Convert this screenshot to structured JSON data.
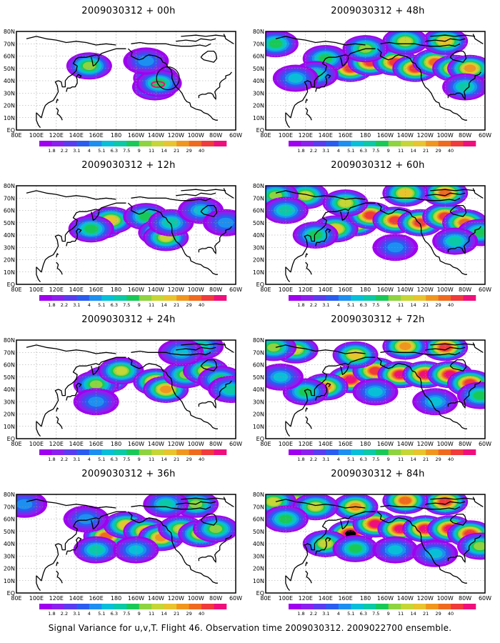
{
  "palette": {
    "colorbar": [
      "#9f00ef",
      "#8b20ee",
      "#5a3cf0",
      "#2b5cf0",
      "#1d8ff0",
      "#08bfd8",
      "#0bc9a6",
      "#19c957",
      "#8ed340",
      "#c5d636",
      "#e8c42e",
      "#f0961f",
      "#ef6a1f",
      "#f03a3c",
      "#ef0f7c"
    ],
    "land_outline": "#000000",
    "grid": "#9a9a9a"
  },
  "colorbar": {
    "labels": [
      "1.8",
      "2.2",
      "3.1",
      "4",
      "5.1",
      "6.3",
      "7.5",
      "9",
      "11",
      "14",
      "21",
      "29",
      "40"
    ]
  },
  "axes": {
    "lon_labels": [
      "80E",
      "100E",
      "120E",
      "140E",
      "160E",
      "180",
      "160W",
      "140W",
      "120W",
      "100W",
      "80W",
      "60W"
    ],
    "lat_labels": [
      "EQ",
      "10N",
      "20N",
      "30N",
      "40N",
      "50N",
      "60N",
      "70N",
      "80N"
    ]
  },
  "panels": [
    {
      "id": "00h",
      "title": "2009030312 + 00h",
      "blobs": [
        [
          153,
          52,
          9
        ],
        [
          -140,
          42,
          10
        ],
        [
          -141,
          35,
          8
        ],
        [
          -137,
          38,
          8
        ],
        [
          -150,
          56,
          5
        ]
      ],
      "peak": [
        -138,
        37,
        2.4
      ],
      "circle": [
        -128,
        42
      ]
    },
    {
      "id": "12h",
      "title": "2009030312 + 12h",
      "blobs": [
        [
          165,
          48,
          12
        ],
        [
          175,
          52,
          11
        ],
        [
          155,
          45,
          8
        ],
        [
          -150,
          55,
          8
        ],
        [
          -135,
          42,
          11
        ],
        [
          -130,
          38,
          10
        ],
        [
          -125,
          50,
          7
        ],
        [
          -95,
          60,
          6
        ],
        [
          -70,
          50,
          5
        ]
      ]
    },
    {
      "id": "24h",
      "title": "2009030312 + 24h",
      "blobs": [
        [
          170,
          48,
          14
        ],
        [
          160,
          44,
          9
        ],
        [
          -175,
          55,
          10
        ],
        [
          -140,
          46,
          13
        ],
        [
          -130,
          40,
          12
        ],
        [
          -110,
          52,
          9
        ],
        [
          -90,
          55,
          10
        ],
        [
          -75,
          48,
          8
        ],
        [
          -95,
          75,
          7
        ],
        [
          -115,
          70,
          6
        ],
        [
          -65,
          40,
          7
        ],
        [
          160,
          30,
          5
        ]
      ]
    },
    {
      "id": "36h",
      "title": "2009030312 + 36h",
      "blobs": [
        [
          170,
          46,
          13
        ],
        [
          -170,
          55,
          11
        ],
        [
          -150,
          50,
          12
        ],
        [
          -135,
          45,
          12
        ],
        [
          -115,
          52,
          10
        ],
        [
          -95,
          48,
          11
        ],
        [
          -80,
          52,
          9
        ],
        [
          -100,
          72,
          9
        ],
        [
          -130,
          72,
          7
        ],
        [
          160,
          35,
          7
        ],
        [
          -160,
          35,
          6
        ],
        [
          150,
          60,
          5
        ],
        [
          88,
          72,
          5
        ]
      ]
    },
    {
      "id": "48h",
      "title": "2009030312 + 48h",
      "blobs": [
        [
          165,
          50,
          14
        ],
        [
          -175,
          55,
          14
        ],
        [
          -150,
          55,
          14
        ],
        [
          -130,
          50,
          14
        ],
        [
          -110,
          55,
          13
        ],
        [
          -90,
          50,
          13
        ],
        [
          -75,
          50,
          12
        ],
        [
          -100,
          72,
          11
        ],
        [
          -140,
          72,
          10
        ],
        [
          140,
          58,
          8
        ],
        [
          130,
          45,
          7
        ],
        [
          110,
          42,
          6
        ],
        [
          90,
          70,
          8
        ],
        [
          180,
          66,
          9
        ],
        [
          -80,
          35,
          7
        ]
      ]
    },
    {
      "id": "60h",
      "title": "2009030312 + 60h",
      "blobs": [
        [
          170,
          50,
          14
        ],
        [
          150,
          45,
          11
        ],
        [
          130,
          40,
          8
        ],
        [
          -175,
          56,
          14
        ],
        [
          -150,
          52,
          14
        ],
        [
          -125,
          50,
          14
        ],
        [
          -100,
          55,
          14
        ],
        [
          -80,
          50,
          13
        ],
        [
          -65,
          42,
          8
        ],
        [
          -100,
          74,
          13
        ],
        [
          -140,
          74,
          11
        ],
        [
          120,
          72,
          10
        ],
        [
          90,
          72,
          9
        ],
        [
          100,
          60,
          7
        ],
        [
          160,
          66,
          10
        ],
        [
          -150,
          30,
          5
        ],
        [
          -90,
          35,
          7
        ]
      ]
    },
    {
      "id": "72h",
      "title": "2009030312 + 72h",
      "blobs": [
        [
          165,
          48,
          15
        ],
        [
          140,
          42,
          12
        ],
        [
          120,
          38,
          8
        ],
        [
          -170,
          55,
          14
        ],
        [
          -145,
          52,
          15
        ],
        [
          -120,
          52,
          15
        ],
        [
          -95,
          52,
          15
        ],
        [
          -75,
          45,
          14
        ],
        [
          -65,
          35,
          8
        ],
        [
          -100,
          74,
          14
        ],
        [
          -140,
          75,
          12
        ],
        [
          110,
          72,
          10
        ],
        [
          88,
          74,
          9
        ],
        [
          170,
          68,
          11
        ],
        [
          -170,
          38,
          6
        ],
        [
          -110,
          30,
          6
        ],
        [
          95,
          50,
          6
        ]
      ]
    },
    {
      "id": "84h",
      "title": "2009030312 + 84h",
      "blobs": [
        [
          165,
          48,
          16
        ],
        [
          140,
          40,
          10
        ],
        [
          170,
          36,
          8
        ],
        [
          -170,
          56,
          15
        ],
        [
          -145,
          52,
          15
        ],
        [
          -120,
          52,
          15
        ],
        [
          -95,
          52,
          15
        ],
        [
          -75,
          48,
          14
        ],
        [
          -65,
          38,
          9
        ],
        [
          -100,
          74,
          14
        ],
        [
          -140,
          75,
          13
        ],
        [
          110,
          74,
          11
        ],
        [
          88,
          74,
          10
        ],
        [
          170,
          70,
          12
        ],
        [
          130,
          70,
          10
        ],
        [
          100,
          60,
          8
        ],
        [
          -150,
          35,
          6
        ],
        [
          -110,
          32,
          6
        ]
      ]
    }
  ],
  "caption": "Signal Variance for u,v,T. Flight 46. Observation time 2009030312. 2009022700 ensemble."
}
